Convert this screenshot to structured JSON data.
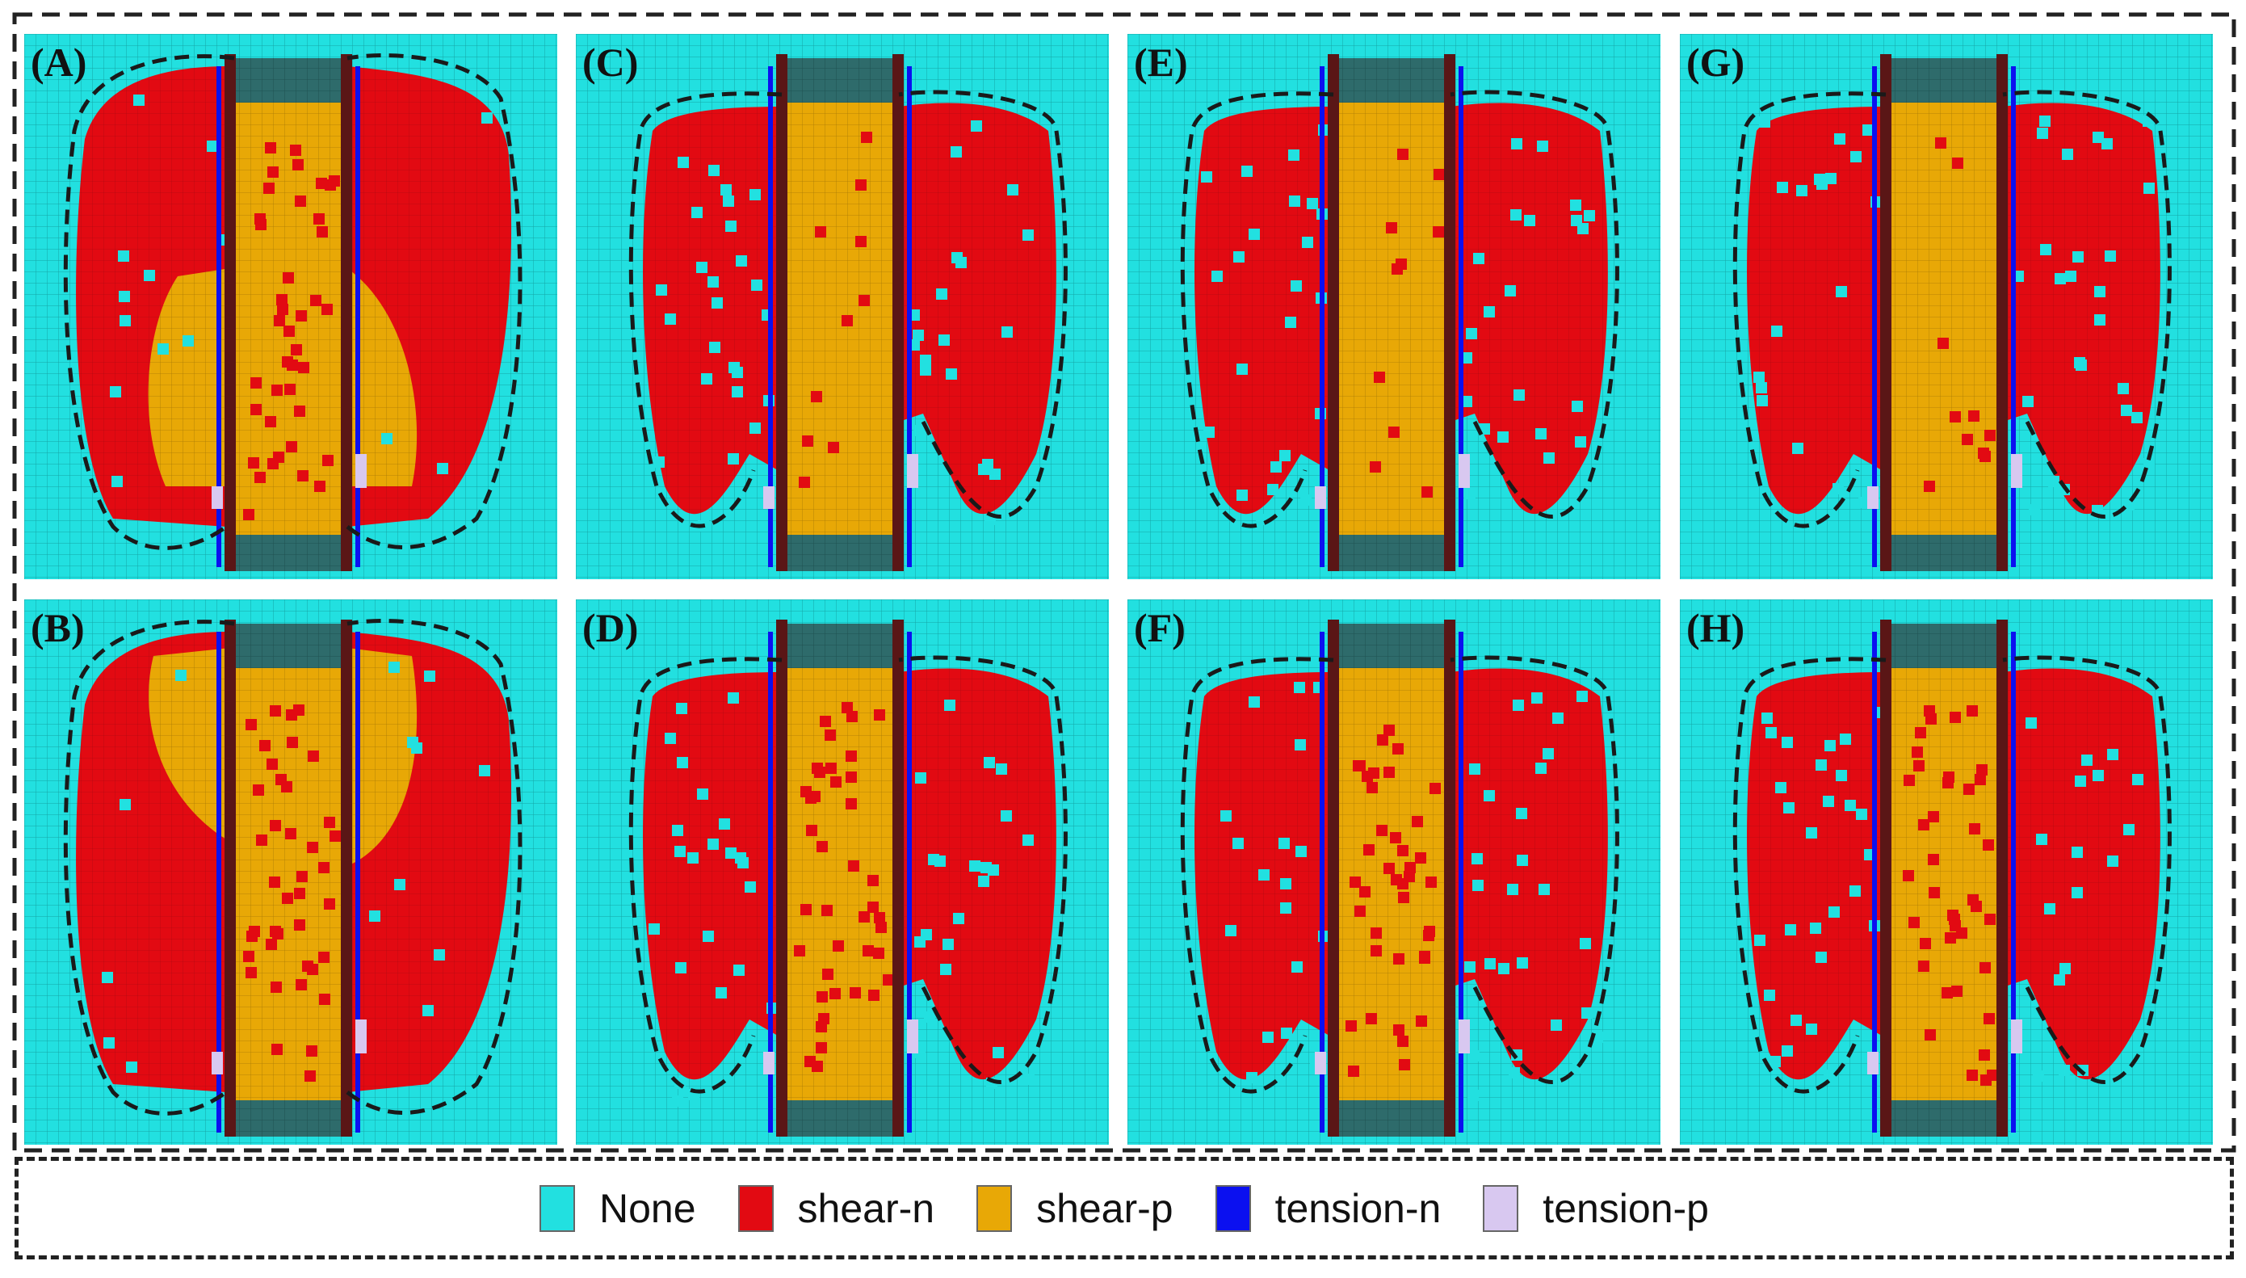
{
  "figure": {
    "panels": [
      {
        "label": "(A)",
        "variant": "a"
      },
      {
        "label": "(C)",
        "variant": "c"
      },
      {
        "label": "(E)",
        "variant": "e"
      },
      {
        "label": "(G)",
        "variant": "g"
      },
      {
        "label": "(B)",
        "variant": "b"
      },
      {
        "label": "(D)",
        "variant": "d"
      },
      {
        "label": "(F)",
        "variant": "f"
      },
      {
        "label": "(H)",
        "variant": "h"
      }
    ]
  },
  "legend": {
    "items": [
      {
        "label": "None",
        "color": "#22e0e0"
      },
      {
        "label": "shear-n",
        "color": "#e20a12"
      },
      {
        "label": "shear-p",
        "color": "#e8a806"
      },
      {
        "label": "tension-n",
        "color": "#0b10f0"
      },
      {
        "label": "tension-p",
        "color": "#d8c8f0"
      }
    ]
  },
  "colors": {
    "background_mesh": "#22e0e0",
    "mesh_line": "#14a6a6",
    "shear_n": "#e20a12",
    "shear_p": "#e8a806",
    "tension_n": "#0b10f0",
    "tension_p": "#d8c8f0",
    "pillar": "#2e6b6b",
    "frame": "#5a1616"
  }
}
